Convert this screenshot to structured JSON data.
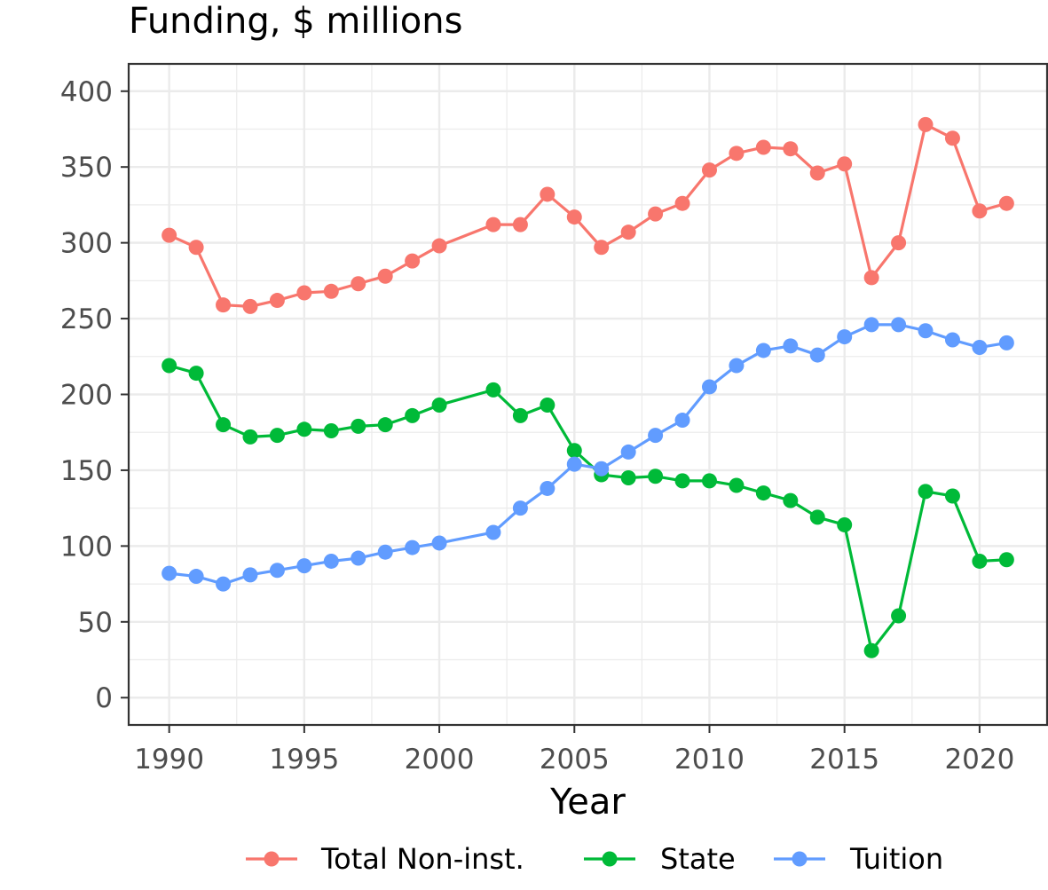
{
  "chart_data": {
    "type": "line",
    "title": "Funding, $ millions",
    "xlabel": "Year",
    "ylabel": "",
    "xlim": [
      1989.4,
      1992.0
    ],
    "ylim": [
      -18,
      418
    ],
    "x_ticks": [
      1990,
      1995,
      2000,
      2005,
      2010,
      2015,
      2020
    ],
    "x_tick_labels": [
      "1990",
      "1995",
      "2000",
      "2005",
      "2010",
      "2015",
      "2020"
    ],
    "y_ticks": [
      0,
      50,
      100,
      150,
      200,
      250,
      300,
      350,
      400
    ],
    "y_tick_labels": [
      "0",
      "50",
      "100",
      "150",
      "200",
      "250",
      "300",
      "350",
      "400"
    ],
    "grid": true,
    "legend_position": "bottom",
    "series": [
      {
        "name": "Total Non-inst.",
        "color": "#F8766D",
        "x": [
          1990,
          1991,
          1992,
          1993,
          1994,
          1995,
          1996,
          1997,
          1998,
          1999,
          2000,
          2002,
          2003,
          2004,
          2005,
          2006,
          2007,
          2008,
          2009,
          2010,
          2011,
          2012,
          2013,
          2014,
          2015,
          2016,
          2017,
          2018,
          2019,
          2020,
          2021
        ],
        "values": [
          305,
          297,
          259,
          258,
          262,
          267,
          268,
          273,
          278,
          288,
          298,
          312,
          312,
          332,
          317,
          297,
          307,
          319,
          326,
          348,
          359,
          363,
          362,
          346,
          352,
          277,
          300,
          378,
          369,
          321,
          326
        ]
      },
      {
        "name": "State",
        "color": "#00BA38",
        "x": [
          1990,
          1991,
          1992,
          1993,
          1994,
          1995,
          1996,
          1997,
          1998,
          1999,
          2000,
          2002,
          2003,
          2004,
          2005,
          2006,
          2007,
          2008,
          2009,
          2010,
          2011,
          2012,
          2013,
          2014,
          2015,
          2016,
          2017,
          2018,
          2019,
          2020,
          2021
        ],
        "values": [
          219,
          214,
          180,
          172,
          173,
          177,
          176,
          179,
          180,
          186,
          193,
          203,
          186,
          193,
          163,
          147,
          145,
          146,
          143,
          143,
          140,
          135,
          130,
          119,
          114,
          31,
          54,
          136,
          133,
          90,
          91
        ]
      },
      {
        "name": "Tuition",
        "color": "#619CFF",
        "x": [
          1990,
          1991,
          1992,
          1993,
          1994,
          1995,
          1996,
          1997,
          1998,
          1999,
          2000,
          2002,
          2003,
          2004,
          2005,
          2006,
          2007,
          2008,
          2009,
          2010,
          2011,
          2012,
          2013,
          2014,
          2015,
          2016,
          2017,
          2018,
          2019,
          2020,
          2021
        ],
        "values": [
          82,
          80,
          75,
          81,
          84,
          87,
          90,
          92,
          96,
          99,
          102,
          109,
          125,
          138,
          154,
          151,
          162,
          173,
          183,
          205,
          219,
          229,
          232,
          226,
          238,
          246,
          246,
          242,
          236,
          231,
          234
        ]
      }
    ]
  }
}
